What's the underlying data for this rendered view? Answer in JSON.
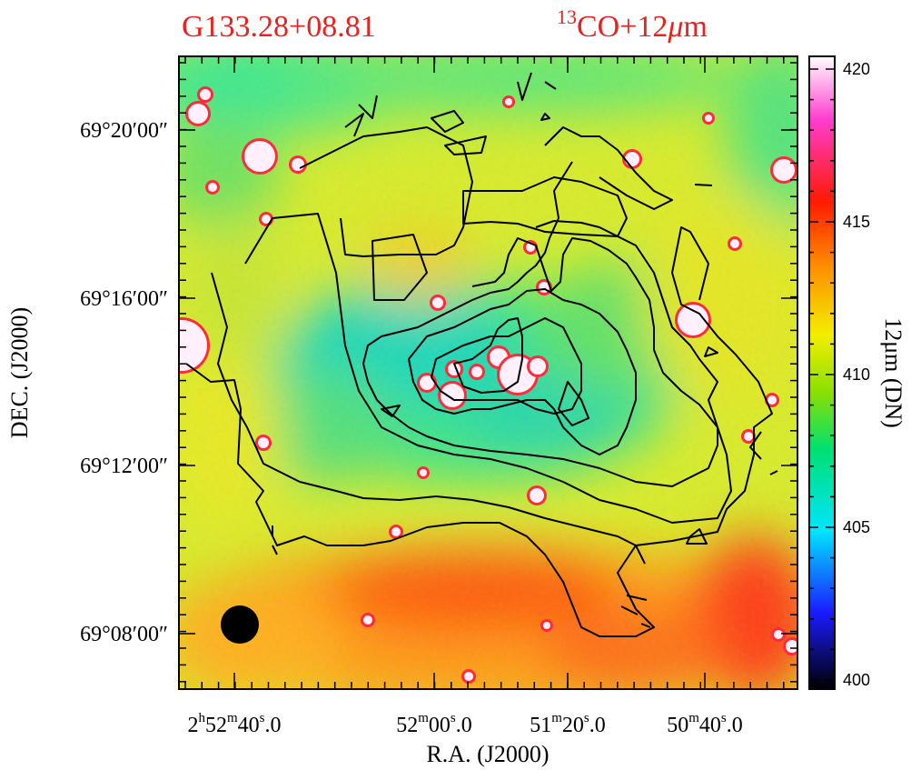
{
  "chart_data": {
    "type": "heatmap",
    "title_left": "G133.28+08.81",
    "title_right": {
      "sup": "13",
      "main": "CO+12",
      "unit_symbol": "μ",
      "unit_tail": "m"
    },
    "xlabel": "R.A. (J2000)",
    "ylabel": "DEC. (J2000)",
    "x_ticks": [
      {
        "h": "2",
        "hu": "h",
        "m": "52",
        "mu": "m",
        "s": "40",
        "su": "s",
        "frac": ".0"
      },
      {
        "h": "",
        "hu": "",
        "m": "52",
        "mu": "m",
        "s": "00",
        "su": "s",
        "frac": ".0"
      },
      {
        "h": "",
        "hu": "",
        "m": "51",
        "mu": "m",
        "s": "20",
        "su": "s",
        "frac": ".0"
      },
      {
        "h": "",
        "hu": "",
        "m": "50",
        "mu": "m",
        "s": "40",
        "su": "s",
        "frac": ".0"
      }
    ],
    "y_ticks": [
      "69°20′00″",
      "69°16′00″",
      "69°12′00″",
      "69°08′00″"
    ],
    "colorbar": {
      "label": "12μm (DN)",
      "ticks": [
        400,
        405,
        410,
        415,
        420
      ],
      "range": [
        400,
        420
      ],
      "colors": [
        "#000000",
        "#1a1aff",
        "#00e5ff",
        "#00e070",
        "#8ce000",
        "#f2ee00",
        "#ff8c00",
        "#ff1a00",
        "#ff3ccf",
        "#ffffff"
      ]
    },
    "contours": "13CO integrated intensity (black lines)",
    "beam": "filled black circle (lower-left)"
  }
}
